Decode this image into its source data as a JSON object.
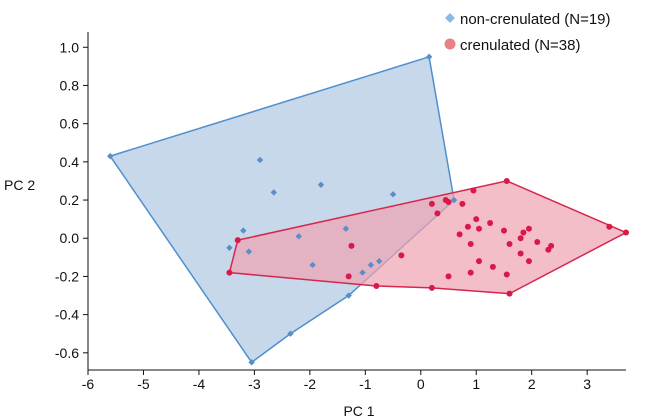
{
  "chart_data": {
    "type": "scatter",
    "xlabel": "PC 1",
    "ylabel": "PC 2",
    "xlim": [
      -6,
      3.7
    ],
    "ylim": [
      -0.69,
      1.08
    ],
    "xticks": [
      "-6",
      "-5",
      "-4",
      "-3",
      "-2",
      "-1",
      "0",
      "1",
      "2",
      "3"
    ],
    "xtick_values": [
      -6,
      -5,
      -4,
      -3,
      -2,
      -1,
      0,
      1,
      2,
      3
    ],
    "yticks": [
      "1.0",
      "0.8",
      "0.6",
      "0.4",
      "0.2",
      "0.0",
      "-0.2",
      "-0.4",
      "-0.6"
    ],
    "ytick_values": [
      1.0,
      0.8,
      0.6,
      0.4,
      0.2,
      0.0,
      -0.2,
      -0.4,
      -0.6
    ],
    "grid": false,
    "legend_position": "top-right",
    "series": [
      {
        "name": "non-crenulated (N=19)",
        "marker": "diamond",
        "color": "#5b8ec9",
        "hull_fill": "#b3cbe3",
        "hull_stroke": "#4f8fce",
        "points": [
          [
            -5.6,
            0.43
          ],
          [
            -3.05,
            -0.65
          ],
          [
            -2.35,
            -0.5
          ],
          [
            -1.3,
            -0.3
          ],
          [
            -0.75,
            -0.12
          ],
          [
            0.6,
            0.2
          ],
          [
            0.15,
            0.95
          ],
          [
            -2.9,
            0.41
          ],
          [
            -2.65,
            0.24
          ],
          [
            -1.8,
            0.28
          ],
          [
            -0.5,
            0.23
          ],
          [
            -3.2,
            0.04
          ],
          [
            -3.45,
            -0.05
          ],
          [
            -3.1,
            -0.07
          ],
          [
            -2.2,
            0.01
          ],
          [
            -1.35,
            0.05
          ],
          [
            -1.95,
            -0.14
          ],
          [
            -0.9,
            -0.14
          ],
          [
            -1.05,
            -0.18
          ]
        ],
        "hull": [
          [
            -5.6,
            0.43
          ],
          [
            0.15,
            0.95
          ],
          [
            0.6,
            0.2
          ],
          [
            -1.3,
            -0.3
          ],
          [
            -2.35,
            -0.5
          ],
          [
            -3.05,
            -0.65
          ]
        ]
      },
      {
        "name": "crenulated (N=38)",
        "marker": "circle",
        "color": "#d8194a",
        "hull_fill": "#f0a3b2",
        "hull_stroke": "#d6264d",
        "points": [
          [
            -3.45,
            -0.18
          ],
          [
            -3.3,
            -0.01
          ],
          [
            1.55,
            0.3
          ],
          [
            3.7,
            0.03
          ],
          [
            3.4,
            0.06
          ],
          [
            1.6,
            -0.29
          ],
          [
            0.2,
            -0.26
          ],
          [
            -0.8,
            -0.25
          ],
          [
            -1.3,
            -0.2
          ],
          [
            -1.25,
            -0.04
          ],
          [
            0.2,
            0.18
          ],
          [
            0.45,
            0.2
          ],
          [
            0.5,
            0.19
          ],
          [
            0.3,
            0.13
          ],
          [
            0.75,
            0.18
          ],
          [
            0.95,
            0.25
          ],
          [
            1.0,
            0.1
          ],
          [
            1.25,
            0.08
          ],
          [
            1.05,
            0.05
          ],
          [
            0.85,
            0.06
          ],
          [
            0.7,
            0.02
          ],
          [
            0.9,
            -0.03
          ],
          [
            1.5,
            0.04
          ],
          [
            1.85,
            0.03
          ],
          [
            1.95,
            0.05
          ],
          [
            1.8,
            0.0
          ],
          [
            2.1,
            -0.02
          ],
          [
            2.35,
            -0.04
          ],
          [
            2.3,
            -0.06
          ],
          [
            1.6,
            -0.03
          ],
          [
            1.8,
            -0.08
          ],
          [
            1.95,
            -0.12
          ],
          [
            1.05,
            -0.12
          ],
          [
            1.3,
            -0.15
          ],
          [
            1.55,
            -0.19
          ],
          [
            0.9,
            -0.18
          ],
          [
            0.5,
            -0.2
          ],
          [
            -0.35,
            -0.09
          ]
        ],
        "hull": [
          [
            -3.45,
            -0.18
          ],
          [
            -3.3,
            -0.01
          ],
          [
            1.55,
            0.3
          ],
          [
            3.7,
            0.03
          ],
          [
            1.6,
            -0.29
          ],
          [
            0.2,
            -0.26
          ],
          [
            -0.8,
            -0.25
          ]
        ]
      }
    ]
  }
}
